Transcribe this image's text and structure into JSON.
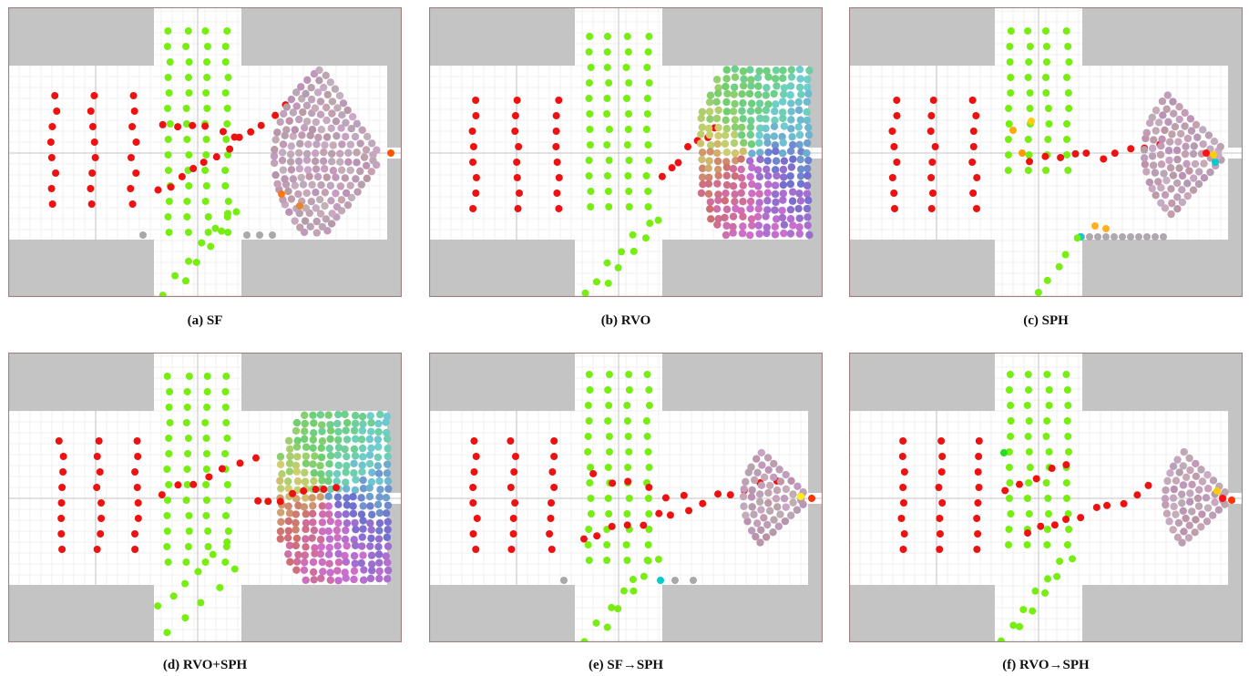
{
  "figure": {
    "panels": [
      {
        "id": "a",
        "label": "(a)",
        "name": "SF"
      },
      {
        "id": "b",
        "label": "(b)",
        "name": "RVO"
      },
      {
        "id": "c",
        "label": "(c)",
        "name": "SPH"
      },
      {
        "id": "d",
        "label": "(d)",
        "name": "RVO+SPH"
      },
      {
        "id": "e",
        "label": "(e)",
        "name": "SF→SPH"
      },
      {
        "id": "f",
        "label": "(f)",
        "name": "RVO→SPH"
      }
    ],
    "colors": {
      "wall": "#c4c4c4",
      "border": "#a08080",
      "grid": "#e6e6e6",
      "center_line": "#b5b5b5",
      "red_agents": "#ee1111",
      "green_agents": "#77ee11",
      "crowd_grey": "#a9a9a9"
    }
  }
}
